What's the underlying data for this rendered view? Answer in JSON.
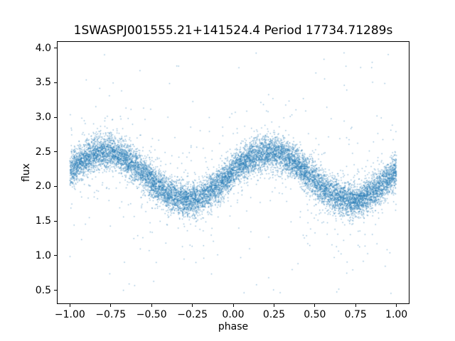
{
  "figure": {
    "background": "#ffffff",
    "spine_color": "#000000"
  },
  "chart_data": {
    "type": "scatter",
    "title": "1SWASPJ001555.21+141524.4 Period 17734.71289s",
    "xlabel": "phase",
    "ylabel": "flux",
    "xlim": [
      -1.08,
      1.08
    ],
    "ylim": [
      0.3,
      4.1
    ],
    "xtick_values": [
      -1.0,
      -0.75,
      -0.5,
      -0.25,
      0.0,
      0.25,
      0.5,
      0.75,
      1.0
    ],
    "xtick_labels": [
      "−1.00",
      "−0.75",
      "−0.50",
      "−0.25",
      "0.00",
      "0.25",
      "0.50",
      "0.75",
      "1.00"
    ],
    "ytick_values": [
      0.5,
      1.0,
      1.5,
      2.0,
      2.5,
      3.0,
      3.5,
      4.0
    ],
    "ytick_labels": [
      "0.5",
      "1.0",
      "1.5",
      "2.0",
      "2.5",
      "3.0",
      "3.5",
      "4.0"
    ],
    "grid": false,
    "legend": null,
    "marker_color": "#1f77b4",
    "marker_alpha": 0.5,
    "marker_size_px": 1.4,
    "model": {
      "kind": "cosine",
      "description": "phase-folded light curve: flux = mean + amplitude * cos(2*pi*(phase - peak_phase)) + gaussian noise",
      "mean_flux": 2.15,
      "amplitude": 0.35,
      "peak_phase": 0.22,
      "trough_phase": -0.28,
      "phase_range": [
        -1.0,
        1.0
      ],
      "noise_sigma": 0.12,
      "n_points": 12000,
      "spread_outliers": {
        "n": 600,
        "sigma": 0.42
      },
      "extreme_outliers": {
        "n": 120,
        "flux_min": 0.45,
        "flux_max": 3.95
      },
      "seed": 42
    }
  }
}
